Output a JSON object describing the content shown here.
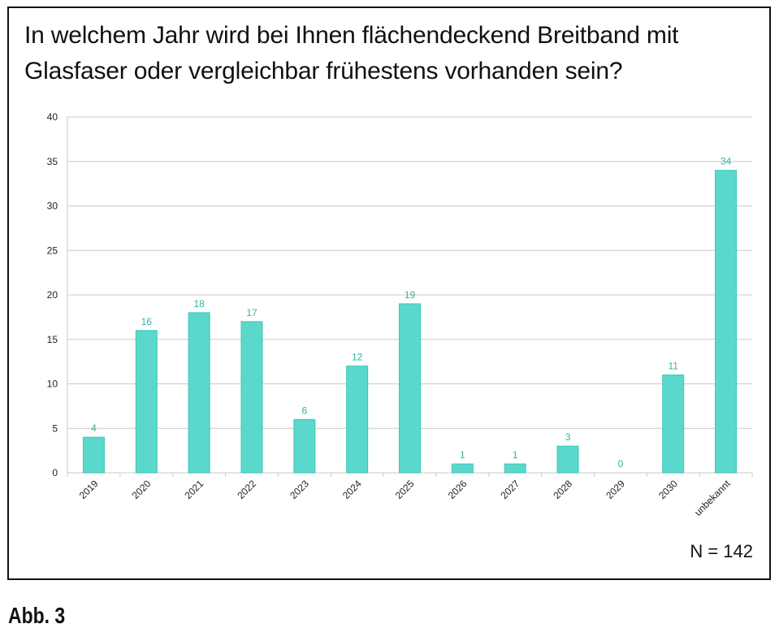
{
  "title_lines": [
    "In welchem Jahr wird bei Ihnen flächendeckend Breitband mit",
    "Glasfaser oder vergleichbar frühestens vorhanden sein?"
  ],
  "sample_size": "N = 142",
  "caption": "Abb. 3",
  "colors": {
    "bar": "#5ad8cb",
    "bar_edge": "#3fc6b8",
    "label": "#35b3a6",
    "grid": "#c9c9c9",
    "axis_text": "#222222"
  },
  "chart_data": {
    "type": "bar",
    "title": "In welchem Jahr wird bei Ihnen flächendeckend Breitband mit Glasfaser oder vergleichbar frühestens vorhanden sein?",
    "categories": [
      "2019",
      "2020",
      "2021",
      "2022",
      "2023",
      "2024",
      "2025",
      "2026",
      "2027",
      "2028",
      "2029",
      "2030",
      "unbekannt"
    ],
    "values": [
      4,
      16,
      18,
      17,
      6,
      12,
      19,
      1,
      1,
      3,
      0,
      11,
      34
    ],
    "ylim": [
      0,
      40
    ],
    "yticks": [
      0,
      5,
      10,
      15,
      20,
      25,
      30,
      35,
      40
    ],
    "xlabel": "",
    "ylabel": "",
    "grid": true,
    "legend": "none"
  }
}
